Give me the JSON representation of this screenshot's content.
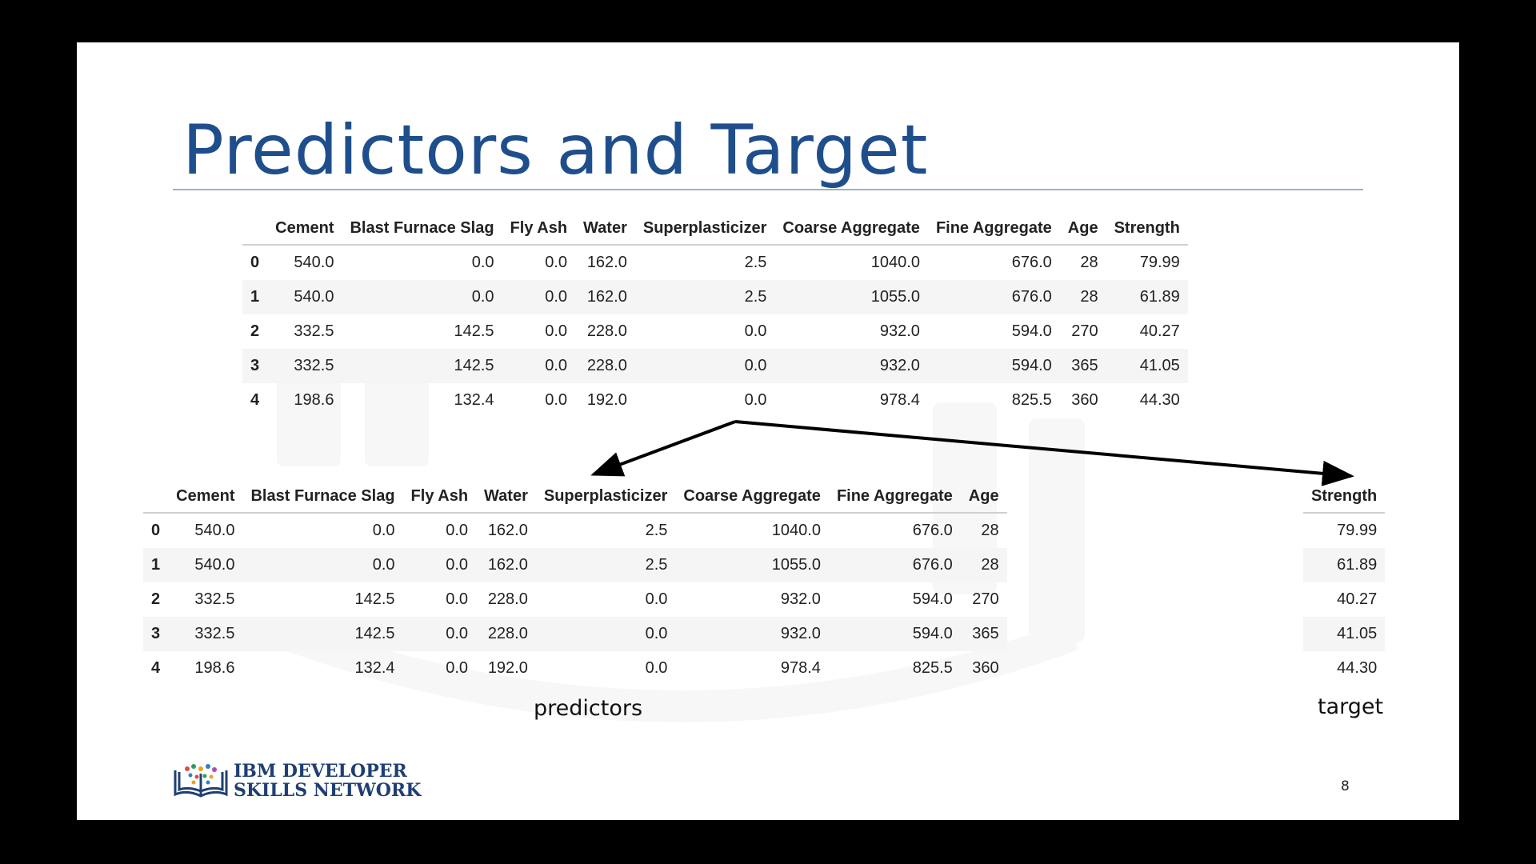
{
  "slide": {
    "title": "Predictors and Target",
    "page_number": "8",
    "logo": {
      "line1": "IBM DEVELOPER",
      "line2": "SKILLS NETWORK"
    },
    "captions": {
      "predictors": "predictors",
      "target": "target"
    }
  },
  "full_table": {
    "columns": [
      "",
      "Cement",
      "Blast Furnace Slag",
      "Fly Ash",
      "Water",
      "Superplasticizer",
      "Coarse Aggregate",
      "Fine Aggregate",
      "Age",
      "Strength"
    ],
    "rows": [
      [
        "0",
        "540.0",
        "0.0",
        "0.0",
        "162.0",
        "2.5",
        "1040.0",
        "676.0",
        "28",
        "79.99"
      ],
      [
        "1",
        "540.0",
        "0.0",
        "0.0",
        "162.0",
        "2.5",
        "1055.0",
        "676.0",
        "28",
        "61.89"
      ],
      [
        "2",
        "332.5",
        "142.5",
        "0.0",
        "228.0",
        "0.0",
        "932.0",
        "594.0",
        "270",
        "40.27"
      ],
      [
        "3",
        "332.5",
        "142.5",
        "0.0",
        "228.0",
        "0.0",
        "932.0",
        "594.0",
        "365",
        "41.05"
      ],
      [
        "4",
        "198.6",
        "132.4",
        "0.0",
        "192.0",
        "0.0",
        "978.4",
        "825.5",
        "360",
        "44.30"
      ]
    ]
  },
  "predictors_table": {
    "columns": [
      "",
      "Cement",
      "Blast Furnace Slag",
      "Fly Ash",
      "Water",
      "Superplasticizer",
      "Coarse Aggregate",
      "Fine Aggregate",
      "Age"
    ],
    "rows": [
      [
        "0",
        "540.0",
        "0.0",
        "0.0",
        "162.0",
        "2.5",
        "1040.0",
        "676.0",
        "28"
      ],
      [
        "1",
        "540.0",
        "0.0",
        "0.0",
        "162.0",
        "2.5",
        "1055.0",
        "676.0",
        "28"
      ],
      [
        "2",
        "332.5",
        "142.5",
        "0.0",
        "228.0",
        "0.0",
        "932.0",
        "594.0",
        "270"
      ],
      [
        "3",
        "332.5",
        "142.5",
        "0.0",
        "228.0",
        "0.0",
        "932.0",
        "594.0",
        "365"
      ],
      [
        "4",
        "198.6",
        "132.4",
        "0.0",
        "192.0",
        "0.0",
        "978.4",
        "825.5",
        "360"
      ]
    ]
  },
  "target_table": {
    "columns": [
      "Strength"
    ],
    "rows": [
      [
        "79.99"
      ],
      [
        "61.89"
      ],
      [
        "40.27"
      ],
      [
        "41.05"
      ],
      [
        "44.30"
      ]
    ]
  },
  "colors": {
    "title": "#1f4e8c",
    "logo_text": "#1f3f73",
    "rule": "#9fb0c2"
  },
  "icons": {
    "logo": "book-network-icon",
    "arrows": "split-arrows-icon"
  }
}
